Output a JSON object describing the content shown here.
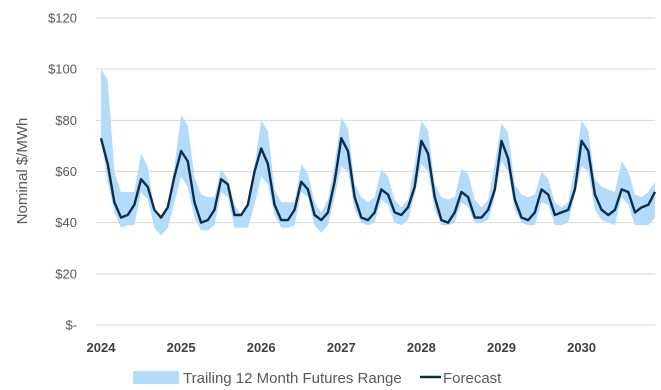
{
  "chart_data": {
    "type": "area",
    "ylabel": "Nominal $/MWh",
    "xlabel": "",
    "ylim": [
      0,
      120
    ],
    "y_ticks": [
      {
        "value": 0,
        "label": "$-"
      },
      {
        "value": 20,
        "label": "$20"
      },
      {
        "value": 40,
        "label": "$40"
      },
      {
        "value": 60,
        "label": "$60"
      },
      {
        "value": 80,
        "label": "$80"
      },
      {
        "value": 100,
        "label": "$100"
      },
      {
        "value": 120,
        "label": "$120"
      }
    ],
    "x_ticks": [
      "2024",
      "2025",
      "2026",
      "2027",
      "2028",
      "2029",
      "2030"
    ],
    "grid": "horizontal",
    "legend_position": "bottom",
    "series": [
      {
        "name": "Trailing 12 Month Futures Range",
        "kind": "band",
        "color": "#b3dcfb",
        "upper": [
          100,
          96,
          60,
          52,
          52,
          52,
          67,
          62,
          45,
          42,
          46,
          62,
          82,
          78,
          58,
          51,
          50,
          50,
          61,
          57,
          47,
          43,
          48,
          62,
          80,
          76,
          53,
          48,
          48,
          48,
          63,
          59,
          48,
          44,
          49,
          63,
          81,
          77,
          55,
          50,
          48,
          50,
          61,
          58,
          49,
          46,
          49,
          63,
          80,
          76,
          55,
          50,
          49,
          50,
          61,
          59,
          49,
          46,
          49,
          63,
          79,
          75,
          55,
          51,
          50,
          51,
          60,
          57,
          48,
          46,
          48,
          62,
          80,
          76,
          57,
          54,
          53,
          52,
          64,
          60,
          51,
          50,
          52,
          56
        ],
        "lower": [
          73,
          56,
          44,
          38,
          39,
          39,
          52,
          49,
          38,
          35,
          38,
          48,
          58,
          54,
          42,
          37,
          37,
          39,
          52,
          50,
          38,
          38,
          38,
          47,
          58,
          55,
          43,
          38,
          38,
          39,
          52,
          50,
          39,
          36,
          39,
          50,
          62,
          60,
          45,
          40,
          39,
          40,
          49,
          47,
          40,
          39,
          41,
          51,
          63,
          60,
          45,
          39,
          39,
          40,
          48,
          46,
          40,
          40,
          41,
          50,
          64,
          60,
          45,
          40,
          39,
          39,
          48,
          47,
          39,
          39,
          40,
          51,
          62,
          60,
          45,
          41,
          40,
          39,
          50,
          47,
          39,
          39,
          39,
          42
        ]
      },
      {
        "name": "Forecast",
        "kind": "line",
        "color": "#0c2d4e",
        "values": [
          73,
          63,
          48,
          42,
          43,
          47,
          57,
          54,
          45,
          42,
          46,
          58,
          68,
          64,
          48,
          40,
          41,
          45,
          57,
          55,
          43,
          43,
          47,
          60,
          69,
          63,
          47,
          41,
          41,
          45,
          56,
          53,
          43,
          41,
          44,
          56,
          73,
          68,
          50,
          42,
          41,
          44,
          53,
          51,
          44,
          43,
          46,
          54,
          72,
          67,
          50,
          41,
          40,
          44,
          52,
          50,
          42,
          42,
          45,
          53,
          72,
          65,
          49,
          42,
          41,
          44,
          53,
          51,
          43,
          44,
          45,
          53,
          72,
          68,
          51,
          45,
          43,
          45,
          53,
          52,
          44,
          46,
          47,
          52
        ]
      }
    ]
  }
}
